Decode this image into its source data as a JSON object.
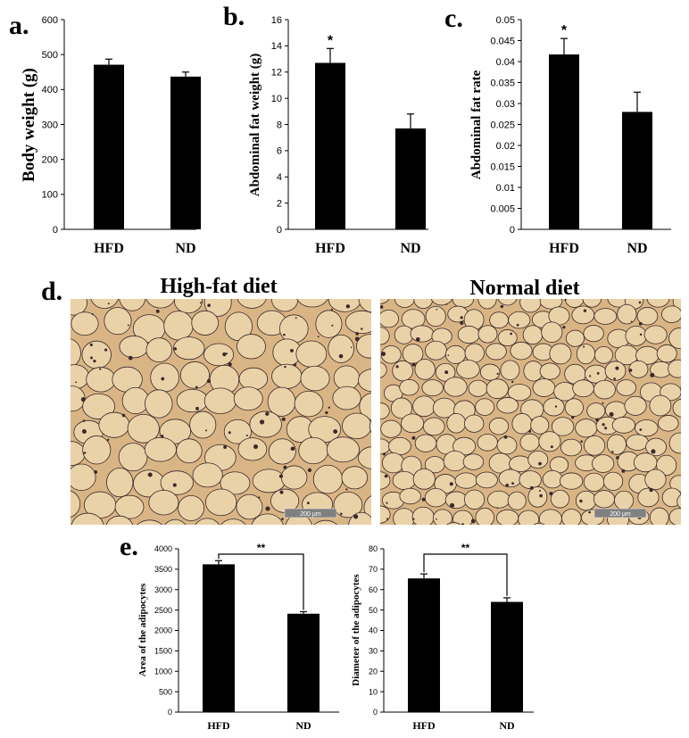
{
  "panels": {
    "a": "a.",
    "b": "b.",
    "c": "c.",
    "d": "d.",
    "e": "e."
  },
  "micrographs": {
    "left_title": "High-fat diet",
    "right_title": "Normal diet",
    "scale_bar_label": "200 µm",
    "colors": {
      "background": "#d9b585",
      "membrane": "#3a2a2a",
      "cell": "#ead2a8"
    }
  },
  "colors": {
    "bar": "#000000",
    "axis": "#000000"
  },
  "chart_data": [
    {
      "id": "a",
      "type": "bar",
      "categories": [
        "HFD",
        "ND"
      ],
      "values": [
        471,
        437
      ],
      "errors": [
        16,
        13
      ],
      "ylabel": "Body weight (g)",
      "ylim": [
        0,
        600
      ],
      "yticks": [
        "0",
        "100",
        "200",
        "300",
        "400",
        "500",
        "600"
      ],
      "significance": [
        "",
        ""
      ]
    },
    {
      "id": "b",
      "type": "bar",
      "categories": [
        "HFD",
        "ND"
      ],
      "values": [
        12.7,
        7.7
      ],
      "errors": [
        1.1,
        1.1
      ],
      "ylabel": "Abdominal fat weight (g)",
      "ylim": [
        0,
        16
      ],
      "yticks": [
        "0",
        "2",
        "4",
        "6",
        "8",
        "10",
        "12",
        "14",
        "16"
      ],
      "significance": [
        "*",
        ""
      ]
    },
    {
      "id": "c",
      "type": "bar",
      "categories": [
        "HFD",
        "ND"
      ],
      "values": [
        0.0417,
        0.028
      ],
      "errors": [
        0.0038,
        0.0047
      ],
      "ylabel": "Abdominal fat rate",
      "ylim": [
        0,
        0.05
      ],
      "yticks": [
        "0",
        "0.005",
        "0.01",
        "0.015",
        "0.02",
        "0.025",
        "0.03",
        "0.035",
        "0.04",
        "0.045",
        "0.05"
      ],
      "significance": [
        "*",
        ""
      ]
    },
    {
      "id": "e1",
      "type": "bar",
      "categories": [
        "HFD",
        "ND"
      ],
      "values": [
        3620,
        2410
      ],
      "errors": [
        90,
        50
      ],
      "ylabel": "Area of the adipocytes",
      "ylim": [
        0,
        4000
      ],
      "yticks": [
        "0",
        "500",
        "1000",
        "1500",
        "2000",
        "2500",
        "3000",
        "3500",
        "4000"
      ],
      "bracket": "**"
    },
    {
      "id": "e2",
      "type": "bar",
      "categories": [
        "HFD",
        "ND"
      ],
      "values": [
        65.5,
        54
      ],
      "errors": [
        2.2,
        2
      ],
      "ylabel": "Diameter of the adipocytes",
      "ylim": [
        0,
        80
      ],
      "yticks": [
        "0",
        "10",
        "20",
        "30",
        "40",
        "50",
        "60",
        "70",
        "80"
      ],
      "bracket": "**"
    }
  ]
}
